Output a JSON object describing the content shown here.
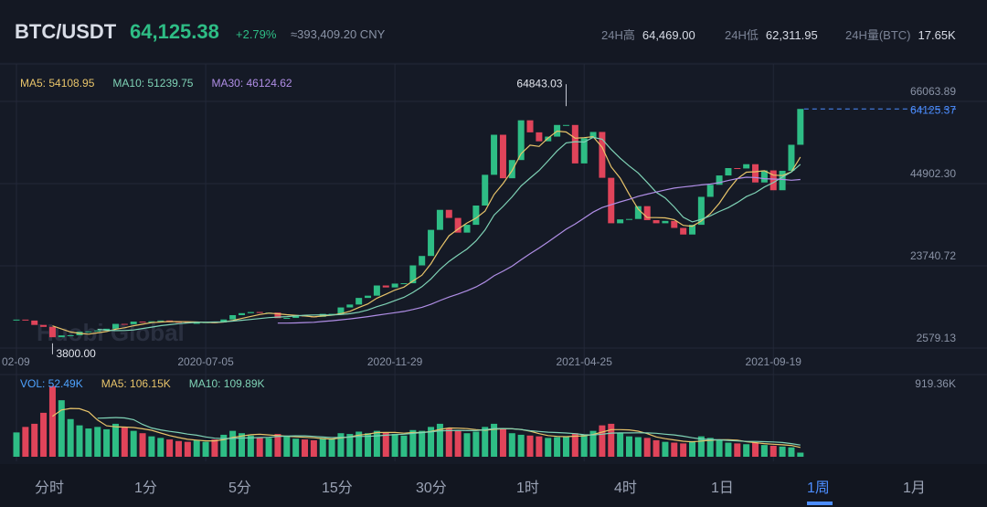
{
  "header": {
    "symbol": "BTC/USDT",
    "price": "64,125.38",
    "change": "+2.79%",
    "cny": "≈393,409.20 CNY",
    "stats": [
      {
        "label": "24H高",
        "value": "64,469.00"
      },
      {
        "label": "24H低",
        "value": "62,311.95"
      },
      {
        "label": "24H量(BTC)",
        "value": "17.65K"
      }
    ]
  },
  "watermark": "Huobi Global",
  "chart_data": [
    {
      "type": "candlestick",
      "indicators": [
        {
          "text": "MA5: 54108.95",
          "color": "#e8c46a"
        },
        {
          "text": "MA10: 51239.75",
          "color": "#7fd3b6"
        },
        {
          "text": "MA30: 46124.62",
          "color": "#b08ee6"
        }
      ],
      "categories": [
        "02-09",
        null,
        null,
        null,
        null,
        null,
        null,
        null,
        null,
        null,
        null,
        null,
        null,
        null,
        null,
        null,
        null,
        null,
        null,
        null,
        null,
        "2020-07-05",
        null,
        null,
        null,
        null,
        null,
        null,
        null,
        null,
        null,
        null,
        null,
        null,
        null,
        null,
        null,
        null,
        null,
        null,
        null,
        null,
        "2020-11-29",
        null,
        null,
        null,
        null,
        null,
        null,
        null,
        null,
        null,
        null,
        null,
        null,
        null,
        null,
        null,
        null,
        null,
        null,
        null,
        null,
        "2021-04-25",
        null,
        null,
        null,
        null,
        null,
        null,
        null,
        null,
        null,
        null,
        null,
        null,
        null,
        null,
        null,
        null,
        null,
        null,
        null,
        null,
        "2021-09-19",
        null,
        null,
        null
      ],
      "values": [
        9900,
        9660,
        8530,
        8030,
        5360,
        5830,
        5880,
        6780,
        6860,
        7120,
        7550,
        8800,
        8720,
        9380,
        9180,
        9450,
        9670,
        9340,
        9290,
        9010,
        9060,
        9230,
        9160,
        9930,
        11050,
        11560,
        11850,
        11650,
        11700,
        10280,
        10330,
        11080,
        10720,
        10620,
        11370,
        11380,
        13030,
        13780,
        15480,
        16060,
        18680,
        18180,
        19170,
        19260,
        23860,
        26280,
        33000,
        38150,
        36070,
        32290,
        34300,
        39260,
        47170,
        57480,
        46280,
        50970,
        61200,
        58100,
        55800,
        57000,
        60000,
        60000,
        50100,
        56600,
        58200,
        46400,
        34700,
        35700,
        35800,
        39100,
        35500,
        34700,
        35300,
        33500,
        31800,
        34300,
        41500,
        44600,
        47000,
        48900,
        48800,
        49900,
        45200,
        48300,
        43200,
        48200,
        54900,
        64125.37
      ],
      "up_color": "#2ebd85",
      "down_color": "#e0445a",
      "ylim": [
        2579.13,
        66063.89
      ],
      "yticks": [
        66063.89,
        {
          "value": 44902.3,
          "label": "44902.30"
        },
        23740.72,
        2579.13
      ],
      "grid": true,
      "annotations": [
        {
          "text": "64843.03",
          "value": 64843.03,
          "index": 61
        },
        {
          "text": "3800.00",
          "value": 3800,
          "index": 4
        }
      ],
      "last_price": {
        "text": "64125.37",
        "value": 64125.37
      }
    },
    {
      "type": "bar",
      "indicators": [
        {
          "text": "VOL: 52.49K",
          "color": "#4ea3ff"
        },
        {
          "text": "MA5: 106.15K",
          "color": "#e8c46a"
        },
        {
          "text": "MA10: 109.89K",
          "color": "#7fd3b6"
        }
      ],
      "values": [
        310,
        380,
        420,
        560,
        900,
        720,
        480,
        400,
        360,
        380,
        350,
        420,
        380,
        330,
        300,
        260,
        240,
        220,
        200,
        190,
        210,
        190,
        220,
        280,
        330,
        300,
        270,
        250,
        240,
        290,
        260,
        230,
        220,
        210,
        240,
        230,
        300,
        290,
        320,
        300,
        330,
        310,
        290,
        270,
        340,
        330,
        380,
        420,
        360,
        330,
        300,
        320,
        380,
        420,
        360,
        300,
        280,
        270,
        260,
        240,
        250,
        260,
        300,
        280,
        330,
        400,
        420,
        300,
        260,
        250,
        240,
        210,
        190,
        180,
        170,
        200,
        260,
        240,
        210,
        180,
        170,
        160,
        180,
        150,
        140,
        130,
        120,
        52.49
      ],
      "ylim": [
        0,
        919.36
      ],
      "yticks": [
        {
          "value": 919.36,
          "label": "919.36K"
        }
      ]
    }
  ],
  "tabs": [
    "分时",
    "1分",
    "5分",
    "15分",
    "30分",
    "1时",
    "4时",
    "1日",
    "1周",
    "1月"
  ],
  "active_tab": 8
}
